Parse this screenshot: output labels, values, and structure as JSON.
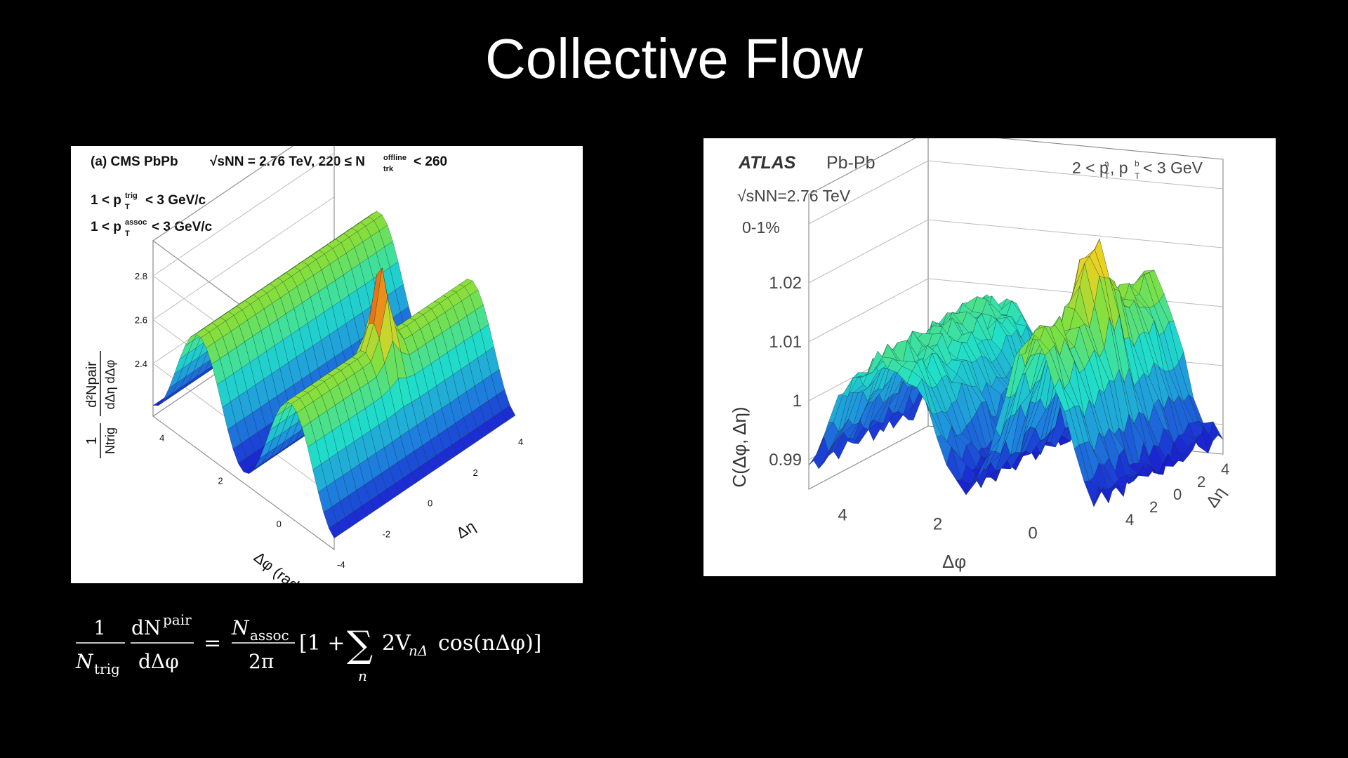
{
  "slide": {
    "title": "Collective Flow"
  },
  "colors": {
    "background": "#000000",
    "title": "#ffffff",
    "low": "#1a1ad0",
    "mid_low": "#1f8fe0",
    "mid": "#21e0c8",
    "mid_high": "#7fe040",
    "high": "#f0d020",
    "peak": "#e02010"
  },
  "chart_data": [
    {
      "type": "surface3d",
      "label": "(a) CMS PbPb",
      "energy": "√sNN = 2.76 TeV, 220 ≤ N",
      "energy_sup": "offline",
      "energy_sub": "trk",
      "energy_tail": "< 260",
      "cut_trig": "1 < p",
      "cut_trig_sup": "trig",
      "cut_trig_tail": "< 3 GeV/c",
      "cut_assoc": "1 < p",
      "cut_assoc_sup": "assoc",
      "cut_assoc_tail": "< 3 GeV/c",
      "cut_sub": "T",
      "zlabel": "1/Ntrig d²Npair/dΔη dΔφ",
      "zlabel_frac_num": "1",
      "zlabel_frac_den": "Ntrig",
      "zlabel_num": "d²Npair",
      "zlabel_den": "dΔη dΔφ",
      "xlabel": "Δη",
      "ylabel": "Δφ (radians)",
      "zticks": [
        "2.4",
        "2.6",
        "2.8"
      ],
      "xticks": [
        "-4",
        "-2",
        "0",
        "2",
        "4"
      ],
      "yticks": [
        "0",
        "2",
        "4"
      ],
      "xlim": [
        -4,
        4
      ],
      "ylim": [
        -1.5,
        4.7
      ],
      "zlim": [
        2.2,
        2.9
      ],
      "near_side_peak": {
        "x": 0,
        "y": 0,
        "z": 2.85
      },
      "model": {
        "base": 2.5,
        "ridge_amplitude": 0.23,
        "jet_amplitude": 0.3
      }
    },
    {
      "type": "surface3d",
      "label": "ATLAS",
      "system": "Pb-Pb",
      "energy": "√sNN=2.76 TeV",
      "centrality": "0-1%",
      "cut": "2 < p",
      "cut_sup_a": "a",
      "cut_sup_b": "b",
      "cut_sub": "T",
      "cut_mid": ", p",
      "cut_tail": "< 3 GeV",
      "zlabel": "C(Δφ, Δη)",
      "xlabel": "Δφ",
      "ylabel": "Δη",
      "zticks": [
        "0.99",
        "1",
        "1.01",
        "1.02"
      ],
      "xticks": [
        "4",
        "2",
        "0"
      ],
      "yticks": [
        "4",
        "2",
        "0",
        "2",
        "4"
      ],
      "xlim": [
        -1.5,
        4.7
      ],
      "ylim": [
        -5,
        5
      ],
      "zlim": [
        0.985,
        1.035
      ],
      "model": {
        "base": 1.0,
        "v2": 0.011,
        "near_peak": 0.012
      }
    }
  ],
  "formula": {
    "lhs_num": "1",
    "lhs_den": "N",
    "lhs_den_sub": "trig",
    "lhs2_num": "dN",
    "lhs2_num_sup": "pair",
    "lhs2_den": "dΔφ",
    "eq": "=",
    "rhs_num": "N",
    "rhs_num_sub": "assoc",
    "rhs_den": "2π",
    "bracket_open": "[1 +",
    "sum": "∑",
    "sum_sub": "n",
    "term": "2V",
    "term_sub": "nΔ",
    "cos": "cos(nΔφ)]"
  }
}
